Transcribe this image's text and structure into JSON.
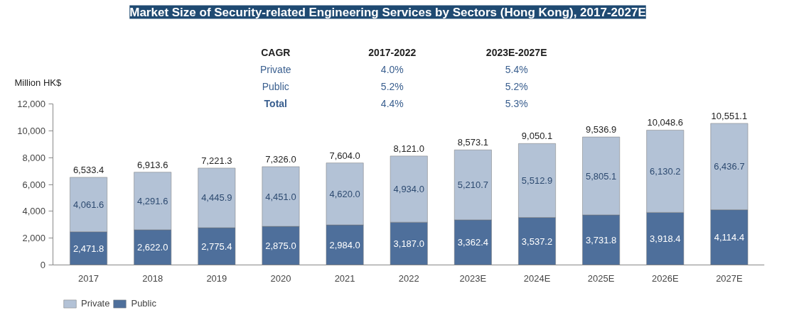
{
  "chart_data": {
    "type": "bar",
    "title": "Market Size of Security-related Engineering Services by Sectors (Hong Kong), 2017-2027E",
    "ylabel": "Million HK$",
    "categories": [
      "2017",
      "2018",
      "2019",
      "2020",
      "2021",
      "2022",
      "2023E",
      "2024E",
      "2025E",
      "2026E",
      "2027E"
    ],
    "stacked": true,
    "series": [
      {
        "name": "Public",
        "color": "#4e6f9b",
        "values": [
          2471.8,
          2622.0,
          2775.4,
          2875.0,
          2984.0,
          3187.0,
          3362.4,
          3537.2,
          3731.8,
          3918.4,
          4114.4
        ],
        "value_labels": [
          "2,471.8",
          "2,622.0",
          "2,775.4",
          "2,875.0",
          "2,984.0",
          "3,187.0",
          "3,362.4",
          "3,537.2",
          "3,731.8",
          "3,918.4",
          "4,114.4"
        ]
      },
      {
        "name": "Private",
        "color": "#b3c2d6",
        "values": [
          4061.6,
          4291.6,
          4445.9,
          4451.0,
          4620.0,
          4934.0,
          5210.7,
          5512.9,
          5805.1,
          6130.2,
          6436.7
        ],
        "value_labels": [
          "4,061.6",
          "4,291.6",
          "4,445.9",
          "4,451.0",
          "4,620.0",
          "4,934.0",
          "5,210.7",
          "5,512.9",
          "5,805.1",
          "6,130.2",
          "6,436.7"
        ]
      }
    ],
    "totals": [
      "6,533.4",
      "6,913.6",
      "7,221.3",
      "7,326.0",
      "7,604.0",
      "8,121.0",
      "8,573.1",
      "9,050.1",
      "9,536.9",
      "10,048.6",
      "10,551.1"
    ],
    "ylim": [
      0,
      12000
    ],
    "yticks": [
      0,
      {
        "value": 2000,
        "label": "2,000"
      },
      {
        "value": 4000,
        "label": "4,000"
      },
      {
        "value": 6000,
        "label": "6,000"
      },
      {
        "value": 8000,
        "label": "8,000"
      },
      {
        "value": 10000,
        "label": "10,000"
      },
      {
        "value": 12000,
        "label": "12,000"
      }
    ],
    "legend": "bottom left",
    "annotations": [
      "CAGR",
      "2017-2022",
      "2023E-2027E",
      "Private",
      "4.0%",
      "5.4%",
      "Public",
      "5.2%",
      "5.2%",
      "Total",
      "4.4%",
      "5.3%"
    ]
  }
}
